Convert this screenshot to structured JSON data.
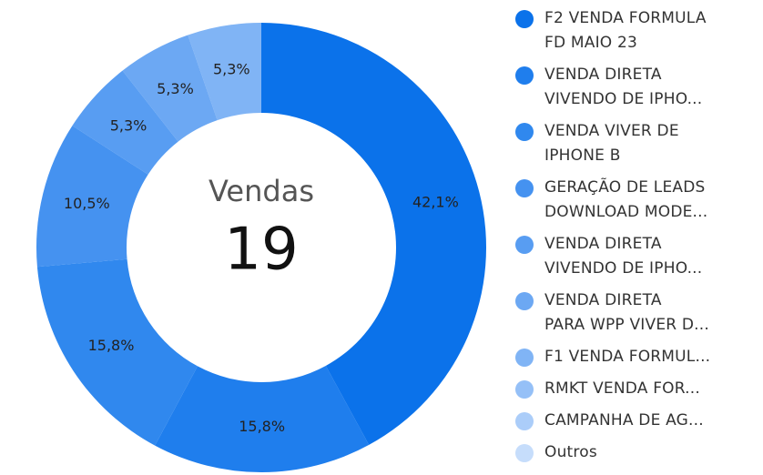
{
  "chart_data": {
    "type": "donut",
    "center_label": "Vendas",
    "center_value": 19,
    "categories": [
      "F2 VENDA FORMULA\nFD MAIO 23",
      "VENDA DIRETA\nVIVENDO DE IPHO...",
      "VENDA VIVER DE\nIPHONE B",
      "GERAÇÃO DE LEADS\nDOWNLOAD MODE...",
      "VENDA DIRETA\nVIVENDO DE IPHO...",
      "VENDA DIRETA\nPARA WPP VIVER D...",
      "F1 VENDA FORMUL...",
      "RMKT VENDA FOR...",
      "CAMPANHA DE AG...",
      "Outros"
    ],
    "values": [
      42.1,
      15.8,
      15.8,
      10.5,
      5.3,
      5.3,
      5.3,
      0,
      0,
      0
    ],
    "value_labels": [
      "42,1%",
      "15,8%",
      "15,8%",
      "10,5%",
      "5,3%",
      "5,3%",
      "5,3%",
      null,
      null,
      null
    ],
    "colors": [
      "#0b72ea",
      "#1f7eed",
      "#3088ee",
      "#4592f0",
      "#589df2",
      "#6ca8f3",
      "#80b4f5",
      "#95c0f7",
      "#abcdf9",
      "#c6ddfb"
    ]
  }
}
